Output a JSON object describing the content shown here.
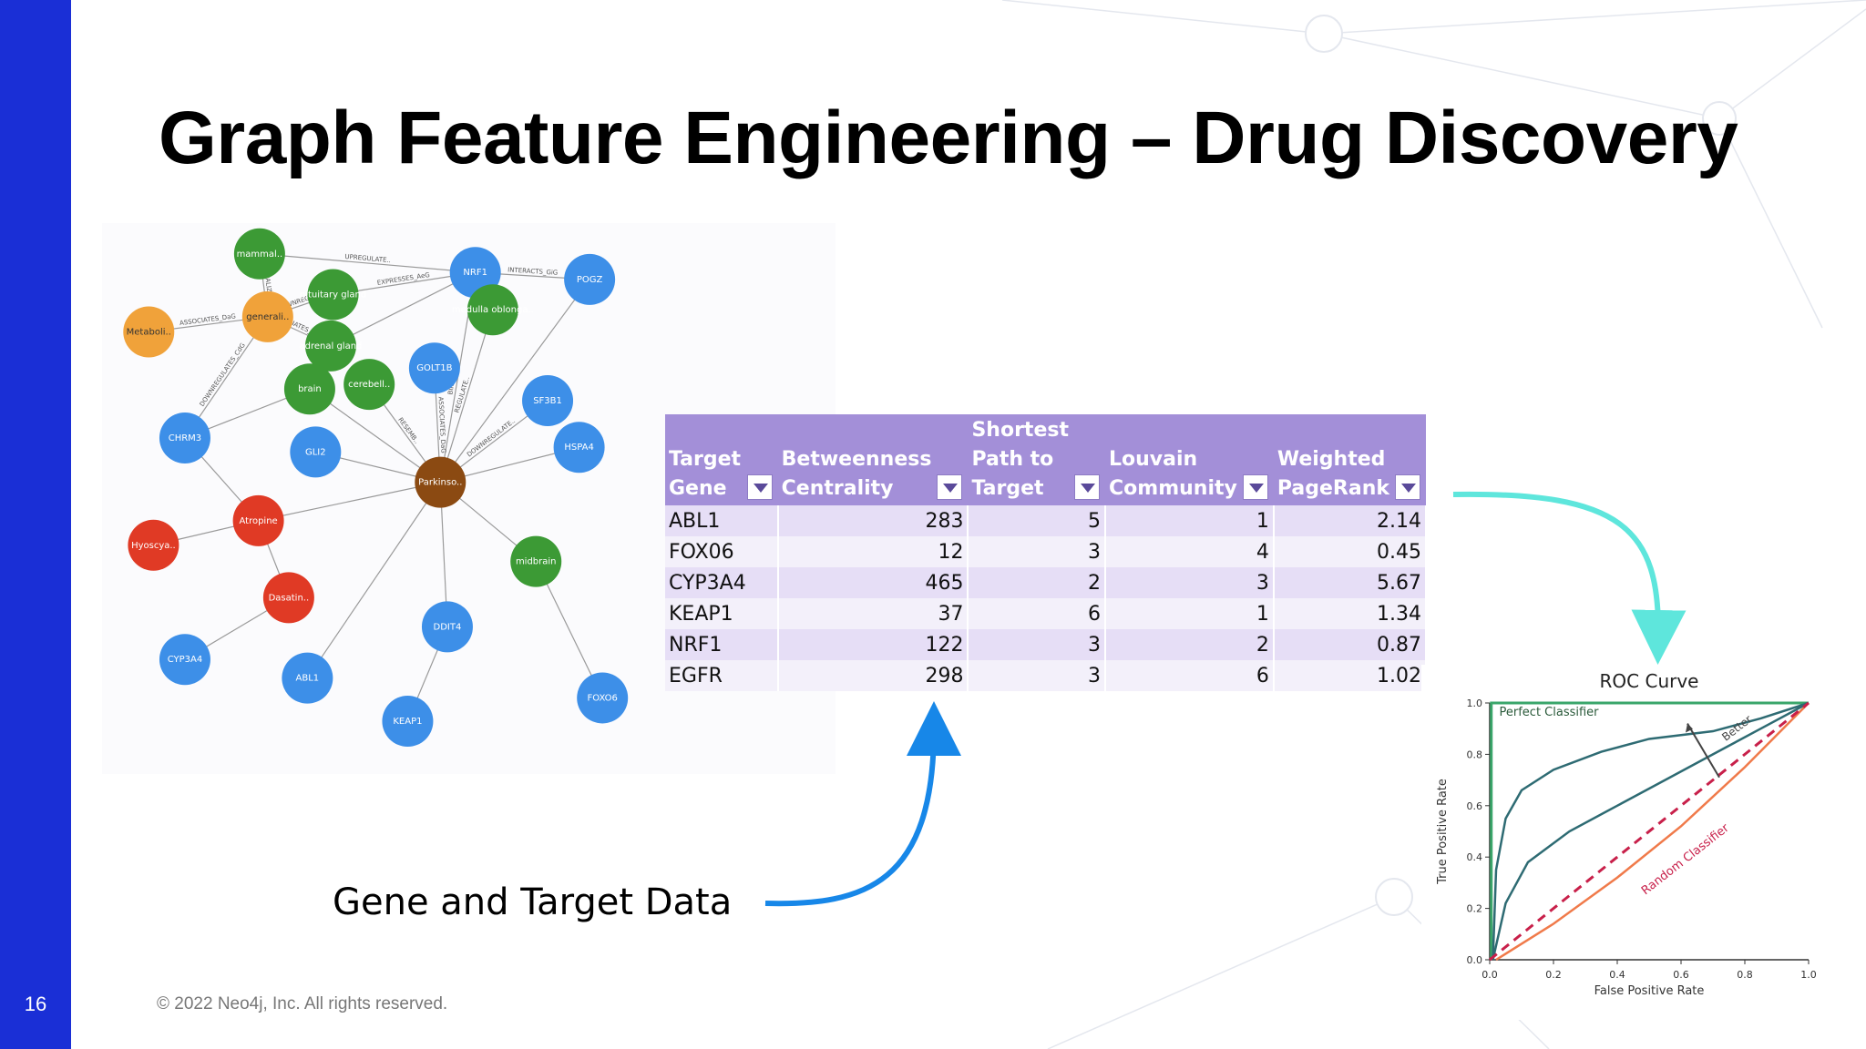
{
  "slide": {
    "title": "Graph Feature Engineering – Drug Discovery",
    "number": "16",
    "copyright": "© 2022 Neo4j, Inc. All rights reserved.",
    "caption": "Gene and Target Data",
    "colors": {
      "sidebar": "#1a2fd6",
      "table_header": "#a38fd8",
      "arrow_blue": "#1787e8",
      "arrow_teal": "#5ee6dc"
    }
  },
  "graph": {
    "nodes": [
      {
        "label": "mammal..",
        "color": "#3c9a35"
      },
      {
        "label": "pituitary gland",
        "color": "#3c9a35"
      },
      {
        "label": "NRF1",
        "color": "#3d8fe8"
      },
      {
        "label": "POGZ",
        "color": "#3d8fe8"
      },
      {
        "label": "generali..",
        "color": "#f0a23a"
      },
      {
        "label": "Metaboli..",
        "color": "#f0a23a"
      },
      {
        "label": "adrenal gland",
        "color": "#3c9a35"
      },
      {
        "label": "medulla oblonga..",
        "color": "#3c9a35"
      },
      {
        "label": "brain",
        "color": "#3c9a35"
      },
      {
        "label": "cerebell..",
        "color": "#3c9a35"
      },
      {
        "label": "GOLT1B",
        "color": "#3d8fe8"
      },
      {
        "label": "SF3B1",
        "color": "#3d8fe8"
      },
      {
        "label": "CHRM3",
        "color": "#3d8fe8"
      },
      {
        "label": "GLI2",
        "color": "#3d8fe8"
      },
      {
        "label": "HSPA4",
        "color": "#3d8fe8"
      },
      {
        "label": "Parkinso..",
        "color": "#8b4a12"
      },
      {
        "label": "Atropine",
        "color": "#e03a25"
      },
      {
        "label": "Hyoscya..",
        "color": "#e03a25"
      },
      {
        "label": "Dasatin..",
        "color": "#e03a25"
      },
      {
        "label": "midbrain",
        "color": "#3c9a35"
      },
      {
        "label": "DDIT4",
        "color": "#3d8fe8"
      },
      {
        "label": "CYP3A4",
        "color": "#3d8fe8"
      },
      {
        "label": "ABL1",
        "color": "#3d8fe8"
      },
      {
        "label": "KEAP1",
        "color": "#3d8fe8"
      },
      {
        "label": "FOXO6",
        "color": "#3d8fe8"
      }
    ],
    "edge_labels": [
      "INTERACTS_GiG",
      "EXPRESSES_AeG",
      "UPREGULATE..",
      "ASSOCIATES_DaG",
      "LOCALIZES..",
      "DOWNREGUL..",
      "PALLIATES_CpD",
      "DOWNREGULATES_CdG",
      "BINDS_CbG",
      "REGULATE..",
      "RESEMB..",
      "ASSOCIATES_DaG",
      "DOWNREGULATE.."
    ]
  },
  "table": {
    "headers": [
      {
        "label": "Target Gene"
      },
      {
        "label": "Betweenness Centrality"
      },
      {
        "label": "Shortest Path to Target"
      },
      {
        "label": "Louvain Community"
      },
      {
        "label": "Weighted PageRank"
      }
    ],
    "rows": [
      {
        "gene": "ABL1",
        "betweenness": "283",
        "shortest": "5",
        "louvain": "1",
        "pagerank": "2.14"
      },
      {
        "gene": "FOX06",
        "betweenness": "12",
        "shortest": "3",
        "louvain": "4",
        "pagerank": "0.45"
      },
      {
        "gene": "CYP3A4",
        "betweenness": "465",
        "shortest": "2",
        "louvain": "3",
        "pagerank": "5.67"
      },
      {
        "gene": "KEAP1",
        "betweenness": "37",
        "shortest": "6",
        "louvain": "1",
        "pagerank": "1.34"
      },
      {
        "gene": "NRF1",
        "betweenness": "122",
        "shortest": "3",
        "louvain": "2",
        "pagerank": "0.87"
      },
      {
        "gene": "EGFR",
        "betweenness": "298",
        "shortest": "3",
        "louvain": "6",
        "pagerank": "1.02"
      }
    ]
  },
  "roc": {
    "title": "ROC Curve",
    "xlabel": "False Positive Rate",
    "ylabel": "True Positive Rate",
    "ticks": [
      "0.0",
      "0.2",
      "0.4",
      "0.6",
      "0.8",
      "1.0"
    ],
    "perfect_label": "Perfect Classifier",
    "random_label": "Random Classifier",
    "better_label": "Better",
    "colors": {
      "perfect": "#3aa66a",
      "curve": "#2e6b73",
      "weak": "#f07a4a",
      "random": "#c8204a"
    }
  }
}
